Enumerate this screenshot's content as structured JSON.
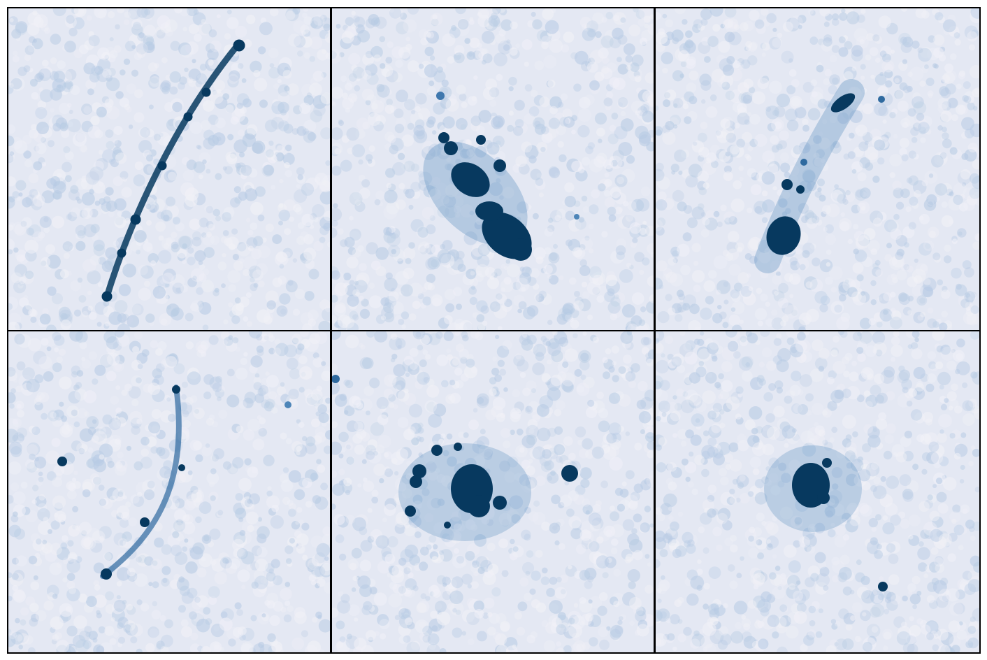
{
  "figure": {
    "layout": {
      "rows": 2,
      "columns": 3
    },
    "colors": {
      "background": "#e4e8f3",
      "noise_light": "#f1f1f7",
      "noise_dark": "#b7cbe4",
      "source": "#07395f",
      "border": "#000000"
    },
    "panels": [
      {
        "id": "top-left",
        "feature": "thin-arc"
      },
      {
        "id": "top-middle",
        "feature": "bright-clump-with-arc"
      },
      {
        "id": "top-right",
        "feature": "elongated-streak"
      },
      {
        "id": "bottom-left",
        "feature": "faint-arc-with-point-source"
      },
      {
        "id": "bottom-middle",
        "feature": "ring-of-knots"
      },
      {
        "id": "bottom-right",
        "feature": "compact-clump-with-point-source"
      }
    ]
  }
}
